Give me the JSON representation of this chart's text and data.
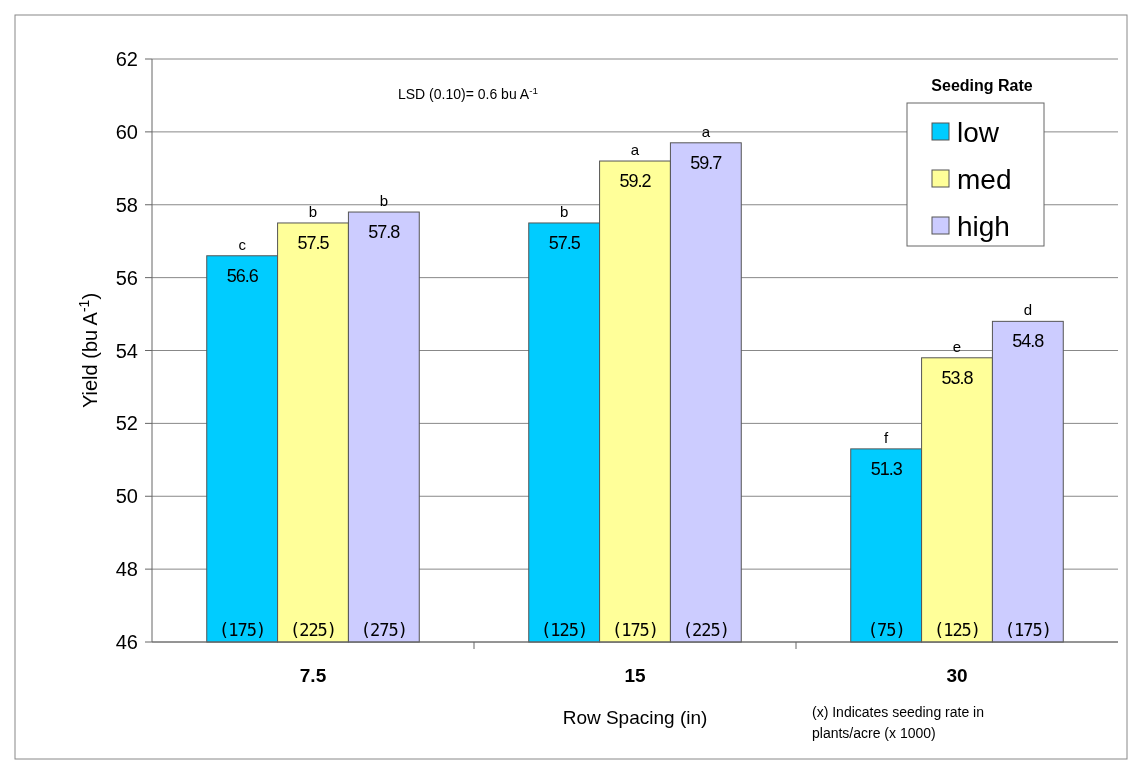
{
  "chart_data": {
    "type": "bar",
    "xlabel": "Row Spacing (in)",
    "ylabel": "Yield (bu A$^{-1}$)",
    "legend_title": "Seeding Rate",
    "categories": [
      "7.5",
      "15",
      "30"
    ],
    "series": [
      {
        "name": "low",
        "color": "#00ccff",
        "values": [
          56.6,
          57.5,
          51.3
        ]
      },
      {
        "name": "med",
        "color": "#ffff99",
        "values": [
          57.5,
          59.2,
          53.8
        ]
      },
      {
        "name": "high",
        "color": "#ccccff",
        "values": [
          57.8,
          59.7,
          54.8
        ]
      }
    ],
    "ylim": [
      46,
      62
    ],
    "yticks": [
      46,
      48,
      50,
      52,
      54,
      56,
      58,
      60,
      62
    ],
    "grid": "y",
    "legend": "top right",
    "data_labels": true,
    "annotations": [
      "LSD (0.10)= 0.6 bu A$^{-1}$",
      "c",
      "b",
      "b",
      "b",
      "a",
      "a",
      "f",
      "e",
      "d",
      "(175)",
      "(225)",
      "(275)",
      "(125)",
      "(175)",
      "(225)",
      "(75)",
      "(125)",
      "(175)",
      "(x) Indicates seeding rate in plants/acre (x 1000)"
    ]
  }
}
